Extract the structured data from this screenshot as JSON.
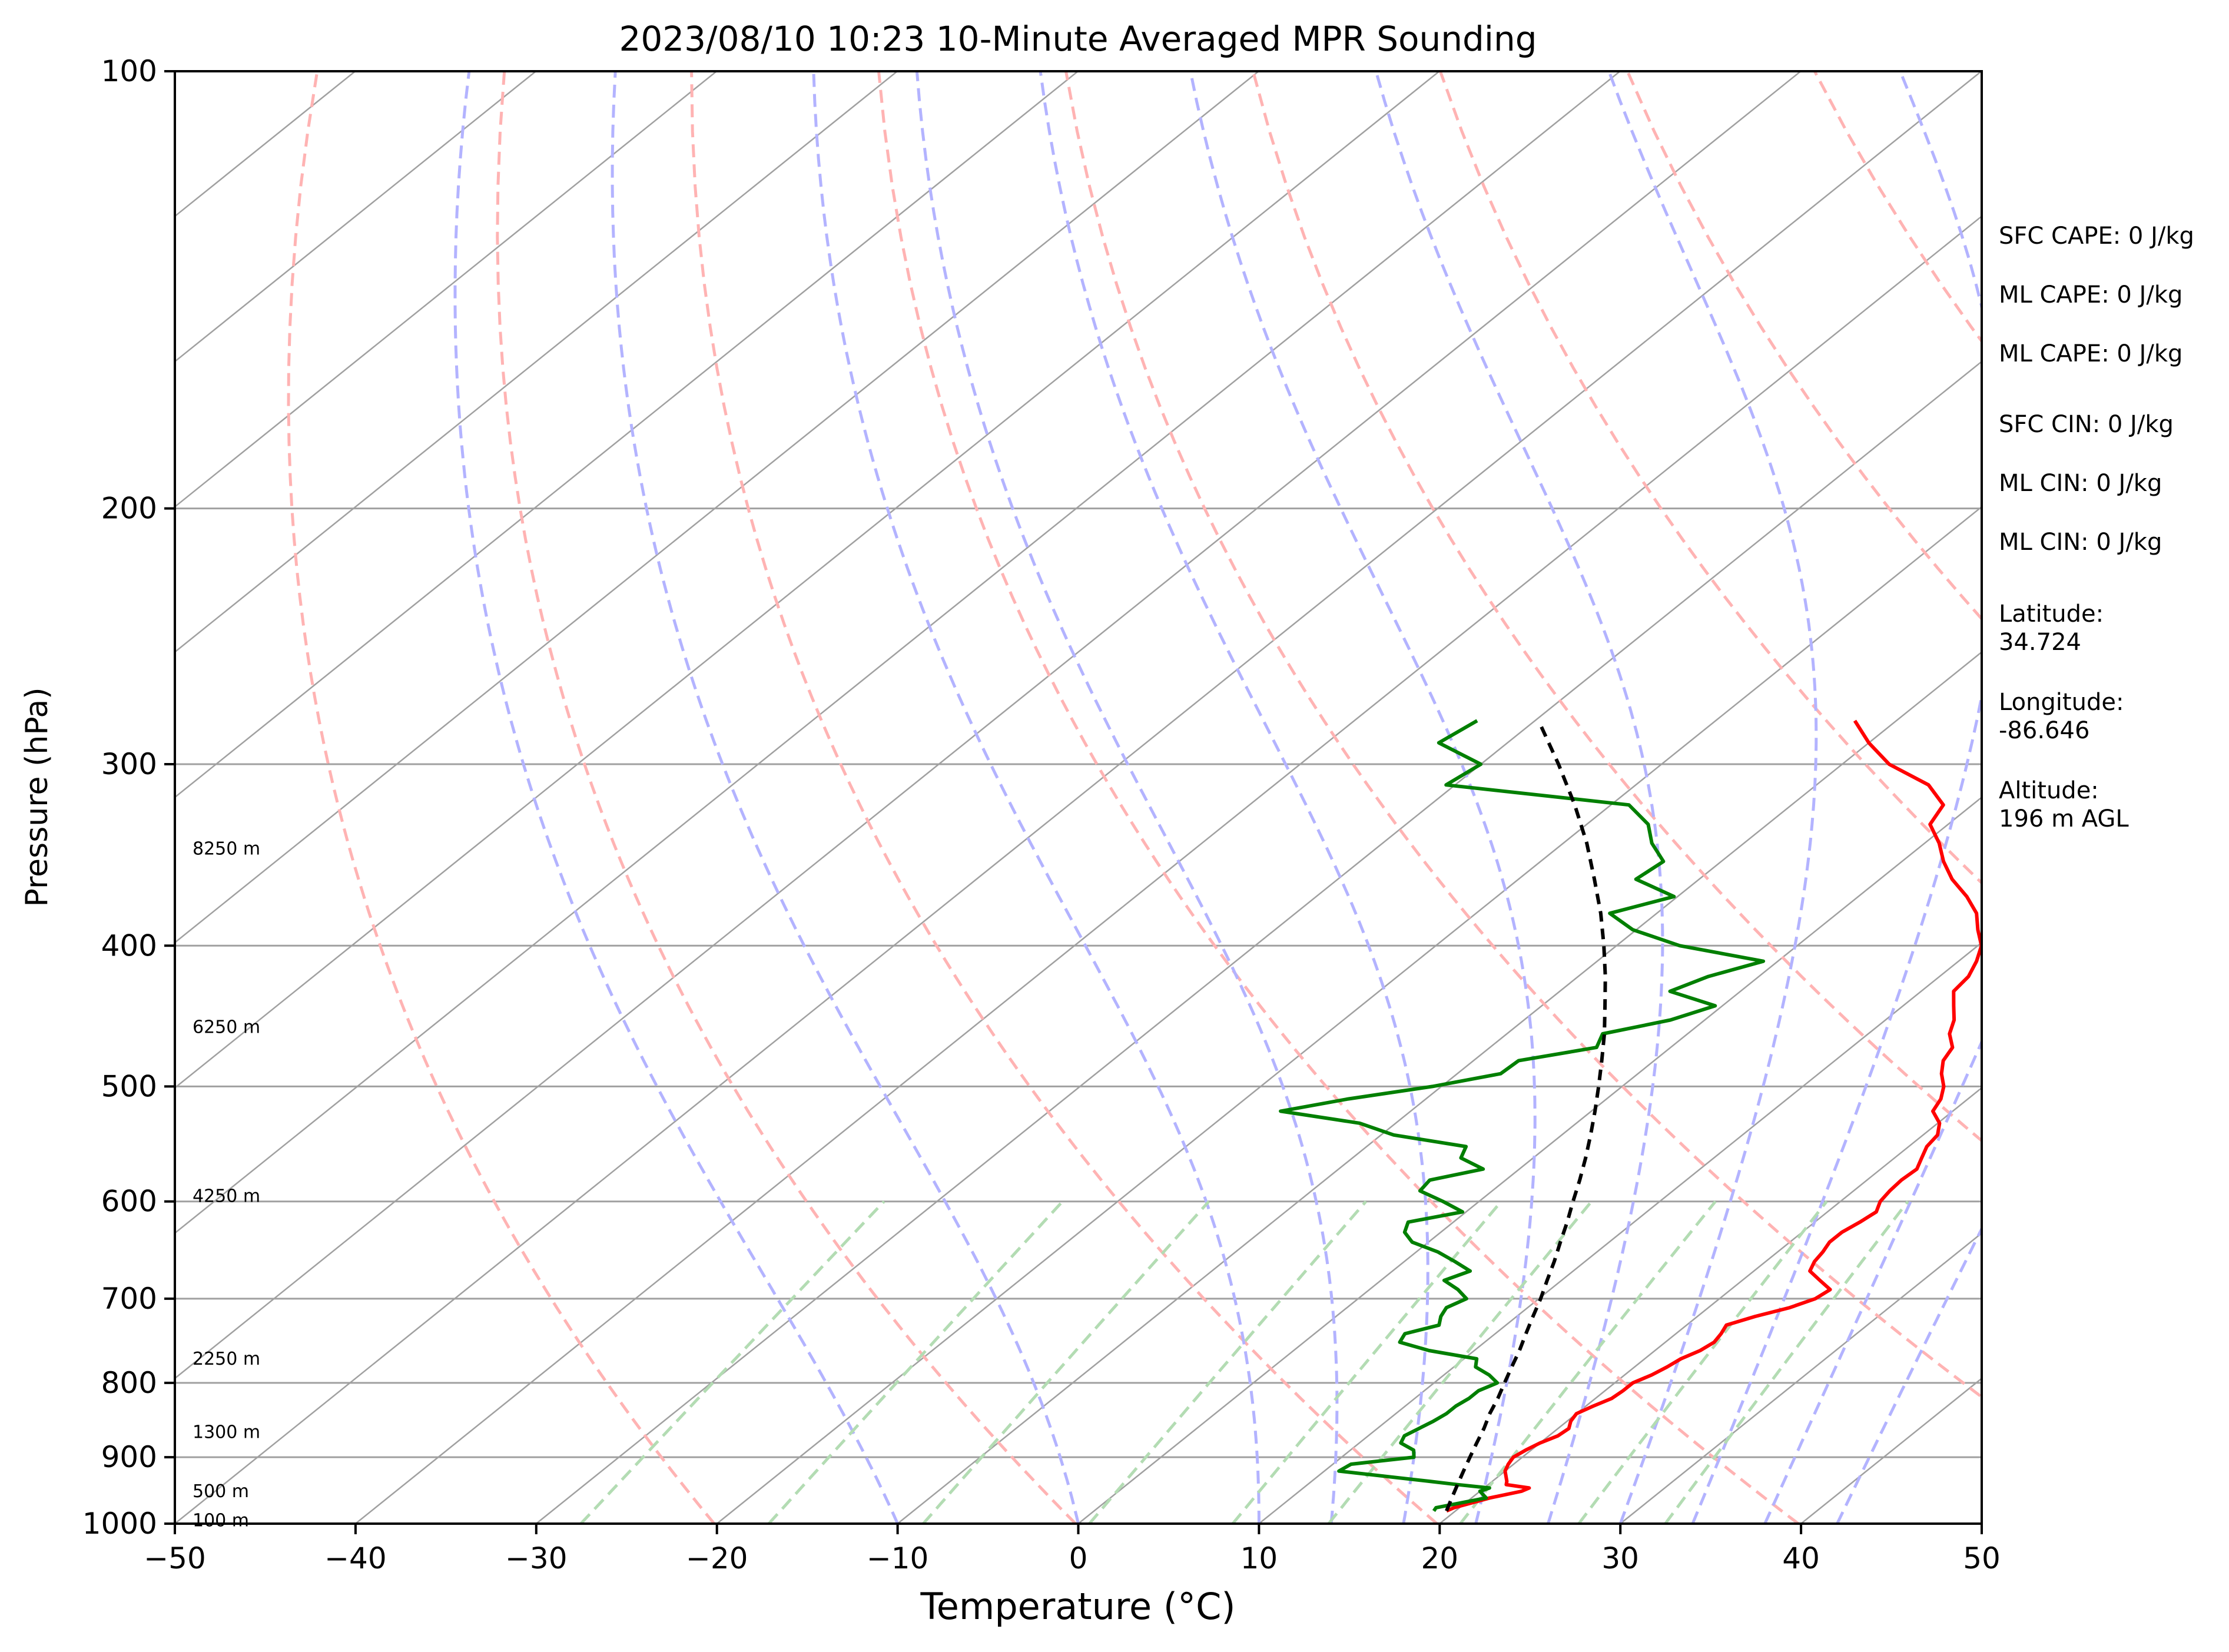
{
  "chart_data": {
    "type": "line",
    "subtype": "skew-t log-p",
    "title": "2023/08/10 10:23 10-Minute Averaged MPR Sounding",
    "xlabel": "Temperature (°C)",
    "ylabel": "Pressure (hPa)",
    "xlim": [
      -50,
      50
    ],
    "ylim": [
      1000,
      100
    ],
    "y_scale": "log",
    "grid": true,
    "x_ticks": [
      -50,
      -40,
      -30,
      -20,
      -10,
      0,
      10,
      20,
      30,
      40,
      50
    ],
    "x_tick_labels": [
      "−50",
      "−40",
      "−30",
      "−20",
      "−10",
      "0",
      "10",
      "20",
      "30",
      "40",
      "50"
    ],
    "y_ticks": [
      1000,
      900,
      800,
      700,
      600,
      500,
      400,
      300,
      200,
      100
    ],
    "y_tick_labels": [
      "1000",
      "900",
      "800",
      "700",
      "600",
      "500",
      "400",
      "300",
      "200",
      "100"
    ],
    "height_labels": [
      {
        "p": 995,
        "text": "100 m"
      },
      {
        "p": 950,
        "text": "500 m"
      },
      {
        "p": 865,
        "text": "1300 m"
      },
      {
        "p": 770,
        "text": "2250 m"
      },
      {
        "p": 595,
        "text": "4250 m"
      },
      {
        "p": 455,
        "text": "6250 m"
      },
      {
        "p": 343,
        "text": "8250 m"
      }
    ],
    "series": [
      {
        "color": "#ff0000",
        "p": [
          980,
          975,
          960,
          950,
          945,
          940,
          935,
          920,
          910,
          900,
          890,
          880,
          870,
          860,
          850,
          840,
          830,
          820,
          810,
          800,
          790,
          780,
          770,
          760,
          750,
          740,
          730,
          720,
          710,
          700,
          690,
          680,
          670,
          660,
          650,
          640,
          630,
          620,
          610,
          600,
          590,
          580,
          570,
          560,
          550,
          540,
          530,
          520,
          510,
          500,
          490,
          480,
          470,
          460,
          450,
          440,
          430,
          420,
          410,
          400,
          390,
          380,
          370,
          360,
          350,
          340,
          330,
          320,
          310,
          300,
          290,
          280
        ],
        "t": [
          19.5,
          19.7,
          21.0,
          22.3,
          22.5,
          21.0,
          20.8,
          20.0,
          19.7,
          19.5,
          19.7,
          20.0,
          20.5,
          20.6,
          20.2,
          20.0,
          20.4,
          20.9,
          21.0,
          21.0,
          21.5,
          21.8,
          22.0,
          22.5,
          22.7,
          22.5,
          22.2,
          23.2,
          24.5,
          25.3,
          25.5,
          24.3,
          23.1,
          22.7,
          22.5,
          22.2,
          22.2,
          22.5,
          22.7,
          22.2,
          22.0,
          21.9,
          22.0,
          21.5,
          21.0,
          20.8,
          20.1,
          18.9,
          18.5,
          17.8,
          16.8,
          16.0,
          15.6,
          14.5,
          13.8,
          12.8,
          11.8,
          11.6,
          11.0,
          10.2,
          8.9,
          7.7,
          6.0,
          4.0,
          2.3,
          0.8,
          -1.0,
          -1.6,
          -3.8,
          -7.4,
          -10.0,
          -12.3
        ]
      },
      {
        "color": "#007f00",
        "p": [
          980,
          975,
          960,
          950,
          945,
          940,
          935,
          920,
          910,
          900,
          890,
          880,
          870,
          860,
          850,
          840,
          830,
          820,
          810,
          800,
          790,
          780,
          770,
          760,
          750,
          740,
          730,
          720,
          710,
          700,
          690,
          680,
          670,
          660,
          650,
          640,
          630,
          620,
          610,
          600,
          590,
          580,
          570,
          560,
          550,
          540,
          530,
          520,
          510,
          500,
          490,
          480,
          470,
          460,
          450,
          440,
          430,
          420,
          410,
          400,
          390,
          380,
          370,
          360,
          350,
          340,
          330,
          320,
          310,
          300,
          290,
          280
        ],
        "t": [
          18.8,
          18.7,
          20.8,
          20.0,
          20.3,
          18.3,
          16.5,
          10.8,
          11.0,
          14.0,
          13.5,
          12.3,
          12.0,
          12.3,
          12.6,
          12.8,
          12.8,
          13.0,
          13.0,
          13.5,
          12.5,
          11.2,
          10.7,
          7.5,
          5.3,
          5.0,
          6.3,
          5.8,
          5.5,
          6.0,
          4.9,
          3.5,
          4.3,
          2.8,
          1.2,
          -0.9,
          -2.0,
          -2.5,
          -0.2,
          -2.0,
          -4.0,
          -4.2,
          -2.0,
          -4.0,
          -4.5,
          -9.3,
          -12.0,
          -17.2,
          -14.3,
          -10.5,
          -7.6,
          -7.5,
          -4.1,
          -4.7,
          -1.9,
          -0.4,
          -3.9,
          -2.8,
          -0.8,
          -6.5,
          -10.2,
          -12.6,
          -10.2,
          -13.5,
          -13.2,
          -15.1,
          -16.6,
          -19.0,
          -30.5,
          -30.0,
          -33.8,
          -33.2
        ]
      },
      {
        "color": "#000000",
        "dashed": true,
        "p": [
          980,
          960,
          940,
          920,
          900,
          880,
          860,
          840,
          820,
          800,
          780,
          760,
          740,
          720,
          700,
          680,
          660,
          640,
          620,
          600,
          580,
          560,
          540,
          520,
          500,
          480,
          460,
          440,
          420,
          400,
          380,
          360,
          340,
          320,
          300,
          280
        ],
        "t": [
          19.5,
          18.9,
          18.3,
          17.7,
          17.1,
          16.5,
          15.9,
          15.2,
          14.6,
          13.9,
          13.2,
          12.5,
          11.7,
          10.9,
          10.1,
          9.2,
          8.3,
          7.3,
          6.3,
          5.2,
          4.1,
          2.9,
          1.6,
          0.2,
          -1.3,
          -2.9,
          -4.6,
          -6.5,
          -8.5,
          -10.7,
          -13.1,
          -15.8,
          -18.7,
          -22.0,
          -25.7,
          -29.8
        ]
      }
    ],
    "dry_adiabats_theta_K": [
      253,
      273,
      293,
      313,
      333,
      353,
      373,
      393,
      413,
      433,
      453
    ],
    "moist_adiabats_start_C": [
      -10,
      0,
      10,
      14,
      18,
      22,
      26,
      30,
      34,
      38,
      42
    ],
    "mixing_ratio_lines_gkg": [
      0.4,
      1,
      2,
      4,
      7,
      10,
      16,
      24,
      32
    ],
    "colors": {
      "temperature": "#ff0000",
      "dewpoint": "#007f00",
      "parcel": "#000000",
      "isotherm_grid": "#a0a0a0",
      "dry_adiabat": "#ffb3b3",
      "moist_adiabat": "#b3b3ff",
      "mixing_ratio": "#b3dcb3"
    }
  },
  "info_panel": {
    "sfc_cape": "SFC CAPE: 0 J/kg",
    "ml_cape_1": "ML CAPE: 0 J/kg",
    "ml_cape_2": "ML CAPE: 0 J/kg",
    "sfc_cin": "SFC CIN: 0 J/kg",
    "ml_cin_1": "ML CIN: 0 J/kg",
    "ml_cin_2": "ML CIN: 0 J/kg",
    "latitude_label": "Latitude:",
    "latitude_value": "34.724",
    "longitude_label": "Longitude:",
    "longitude_value": "-86.646",
    "altitude_label": "Altitude:",
    "altitude_value": "196 m AGL"
  }
}
